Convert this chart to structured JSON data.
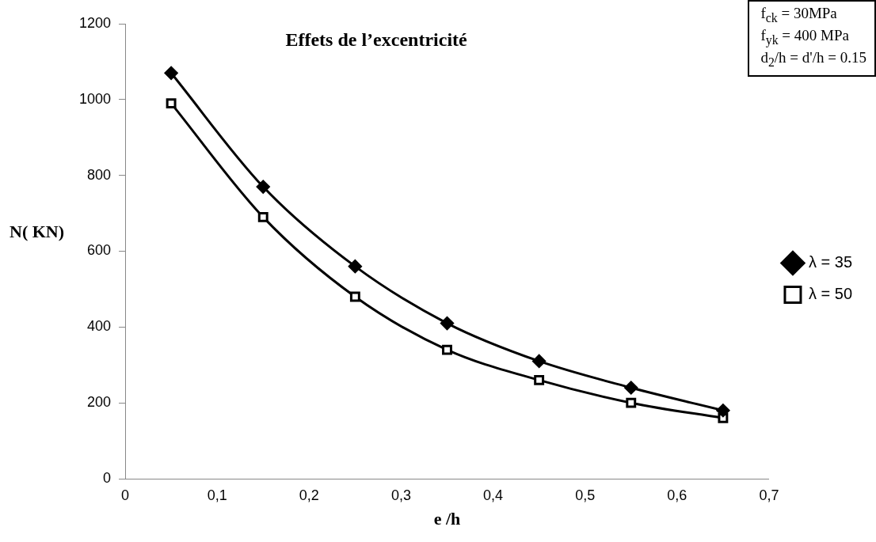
{
  "chart_data": {
    "type": "line",
    "title": "Effets de l’excentricité",
    "xlabel": "e /h",
    "ylabel": "N( KN)",
    "annotations": [
      "f$_{ck}$ = 30MPa",
      "f$_{yk}$ = 400 MPa",
      "d$_{2}$/h = d'/h = 0.15"
    ],
    "x": [
      0.05,
      0.15,
      0.25,
      0.35,
      0.45,
      0.55,
      0.65
    ],
    "series": [
      {
        "name": "λ = 35",
        "color": "#000000",
        "marker": "diamond",
        "values": [
          1070,
          770,
          560,
          410,
          310,
          240,
          180
        ]
      },
      {
        "name": "λ = 50",
        "color": "#000000",
        "marker": "square",
        "values": [
          990,
          690,
          480,
          340,
          260,
          200,
          160
        ]
      }
    ],
    "xlim": [
      0,
      0.7
    ],
    "xticks": [
      0,
      {
        "value": 0.1,
        "label": "0,1"
      },
      {
        "value": 0.2,
        "label": "0,2"
      },
      {
        "value": 0.3,
        "label": "0,3"
      },
      {
        "value": 0.4,
        "label": "0,4"
      },
      {
        "value": 0.5,
        "label": "0,5"
      },
      {
        "value": 0.6,
        "label": "0,6"
      },
      {
        "value": 0.7,
        "label": "0,7"
      }
    ],
    "ylim": [
      0,
      1200
    ],
    "yticks": [
      0,
      200,
      400,
      600,
      800,
      1000,
      1200
    ],
    "grid": false,
    "legend": "right",
    "line_style": "solid"
  }
}
